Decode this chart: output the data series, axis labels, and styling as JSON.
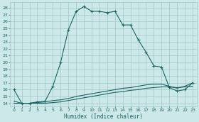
{
  "xlabel": "Humidex (Indice chaleur)",
  "bg_color": "#cce8e8",
  "grid_color": "#9ec8c8",
  "line_color": "#1a6464",
  "xlim": [
    -0.5,
    23.5
  ],
  "ylim": [
    13.5,
    28.8
  ],
  "xticks": [
    0,
    1,
    2,
    3,
    4,
    5,
    6,
    7,
    8,
    9,
    10,
    11,
    12,
    13,
    14,
    15,
    16,
    17,
    18,
    19,
    20,
    21,
    22,
    23
  ],
  "yticks": [
    14,
    15,
    16,
    17,
    18,
    19,
    20,
    21,
    22,
    23,
    24,
    25,
    26,
    27,
    28
  ],
  "curve1_x": [
    0,
    1,
    2,
    3,
    4,
    5,
    6,
    7,
    8,
    9,
    10,
    11,
    12,
    13,
    14,
    15,
    16,
    17,
    18,
    19,
    20,
    21,
    22,
    23
  ],
  "curve1_y": [
    16.0,
    14.0,
    14.0,
    14.2,
    14.3,
    16.5,
    20.0,
    24.8,
    27.5,
    28.2,
    27.5,
    27.5,
    27.3,
    27.5,
    25.5,
    25.5,
    23.3,
    21.5,
    19.5,
    19.3,
    16.3,
    15.8,
    16.0,
    17.0
  ],
  "curve2_x": [
    0,
    1,
    2,
    3,
    4,
    5,
    6,
    7,
    8,
    9,
    10,
    11,
    12,
    13,
    14,
    15,
    16,
    17,
    18,
    19,
    20,
    21,
    22,
    23
  ],
  "curve2_y": [
    14.3,
    14.0,
    14.0,
    14.1,
    14.2,
    14.4,
    14.5,
    14.7,
    15.0,
    15.2,
    15.4,
    15.6,
    15.8,
    16.0,
    16.2,
    16.3,
    16.5,
    16.7,
    16.8,
    16.8,
    16.5,
    16.2,
    16.5,
    17.0
  ],
  "curve3_x": [
    0,
    1,
    2,
    3,
    4,
    5,
    6,
    7,
    8,
    9,
    10,
    11,
    12,
    13,
    14,
    15,
    16,
    17,
    18,
    19,
    20,
    21,
    22,
    23
  ],
  "curve3_y": [
    14.0,
    14.0,
    14.0,
    14.0,
    14.0,
    14.1,
    14.2,
    14.4,
    14.6,
    14.8,
    15.0,
    15.2,
    15.4,
    15.6,
    15.7,
    15.9,
    16.0,
    16.2,
    16.3,
    16.4,
    16.4,
    16.3,
    16.4,
    16.5
  ]
}
